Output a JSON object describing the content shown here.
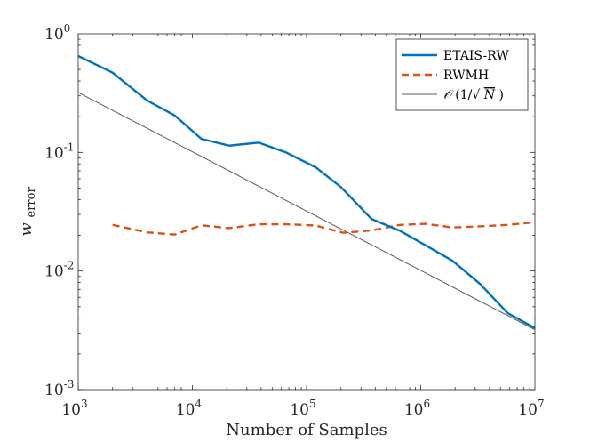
{
  "chart_data": {
    "type": "line",
    "xscale": "log",
    "yscale": "log",
    "xlim": [
      1000,
      10000000
    ],
    "ylim": [
      0.001,
      1
    ],
    "xlabel": "Number of Samples",
    "ylabel": {
      "base": "w",
      "subscript": "error"
    },
    "x_ticks": [
      {
        "value": 1000,
        "base": "10",
        "exp": "3"
      },
      {
        "value": 10000,
        "base": "10",
        "exp": "4"
      },
      {
        "value": 100000,
        "base": "10",
        "exp": "5"
      },
      {
        "value": 1000000,
        "base": "10",
        "exp": "6"
      },
      {
        "value": 10000000,
        "base": "10",
        "exp": "7"
      }
    ],
    "y_ticks": [
      {
        "value": 0.001,
        "base": "10",
        "exp": "-3"
      },
      {
        "value": 0.01,
        "base": "10",
        "exp": "-2"
      },
      {
        "value": 0.1,
        "base": "10",
        "exp": "-1"
      },
      {
        "value": 1,
        "base": "10",
        "exp": "0"
      }
    ],
    "legend_position": "top-right",
    "series": [
      {
        "name": "ETAIS-RW",
        "color": "#0072BD",
        "style": "solid",
        "x": [
          1000,
          2000,
          4000,
          7000,
          12000,
          21000,
          38000,
          66000,
          120000,
          200000,
          370000,
          660000,
          1100000,
          1900000,
          3300000,
          5800000,
          10000000
        ],
        "y": [
          0.65,
          0.47,
          0.275,
          0.205,
          0.13,
          0.114,
          0.121,
          0.1,
          0.075,
          0.051,
          0.0275,
          0.0218,
          0.0165,
          0.0122,
          0.0078,
          0.0044,
          0.0033
        ]
      },
      {
        "name": "RWMH",
        "color": "#D95319",
        "style": "dashed",
        "x": [
          2000,
          4000,
          7000,
          12000,
          21000,
          38000,
          66000,
          120000,
          210000,
          370000,
          660000,
          1100000,
          1900000,
          3300000,
          5800000,
          10000000
        ],
        "y": [
          0.0245,
          0.0212,
          0.0203,
          0.0243,
          0.023,
          0.0248,
          0.0248,
          0.0242,
          0.021,
          0.022,
          0.0245,
          0.025,
          0.0233,
          0.0238,
          0.0245,
          0.0258
        ]
      },
      {
        "name": "O(1/√N)",
        "legend_parts": {
          "O": "𝒪",
          "open": "(1/√",
          "N": "N",
          "close": ")"
        },
        "color": "#595959",
        "style": "solid-thin",
        "x": [
          1000,
          10000000
        ],
        "y": [
          0.32,
          0.0032
        ]
      }
    ]
  }
}
